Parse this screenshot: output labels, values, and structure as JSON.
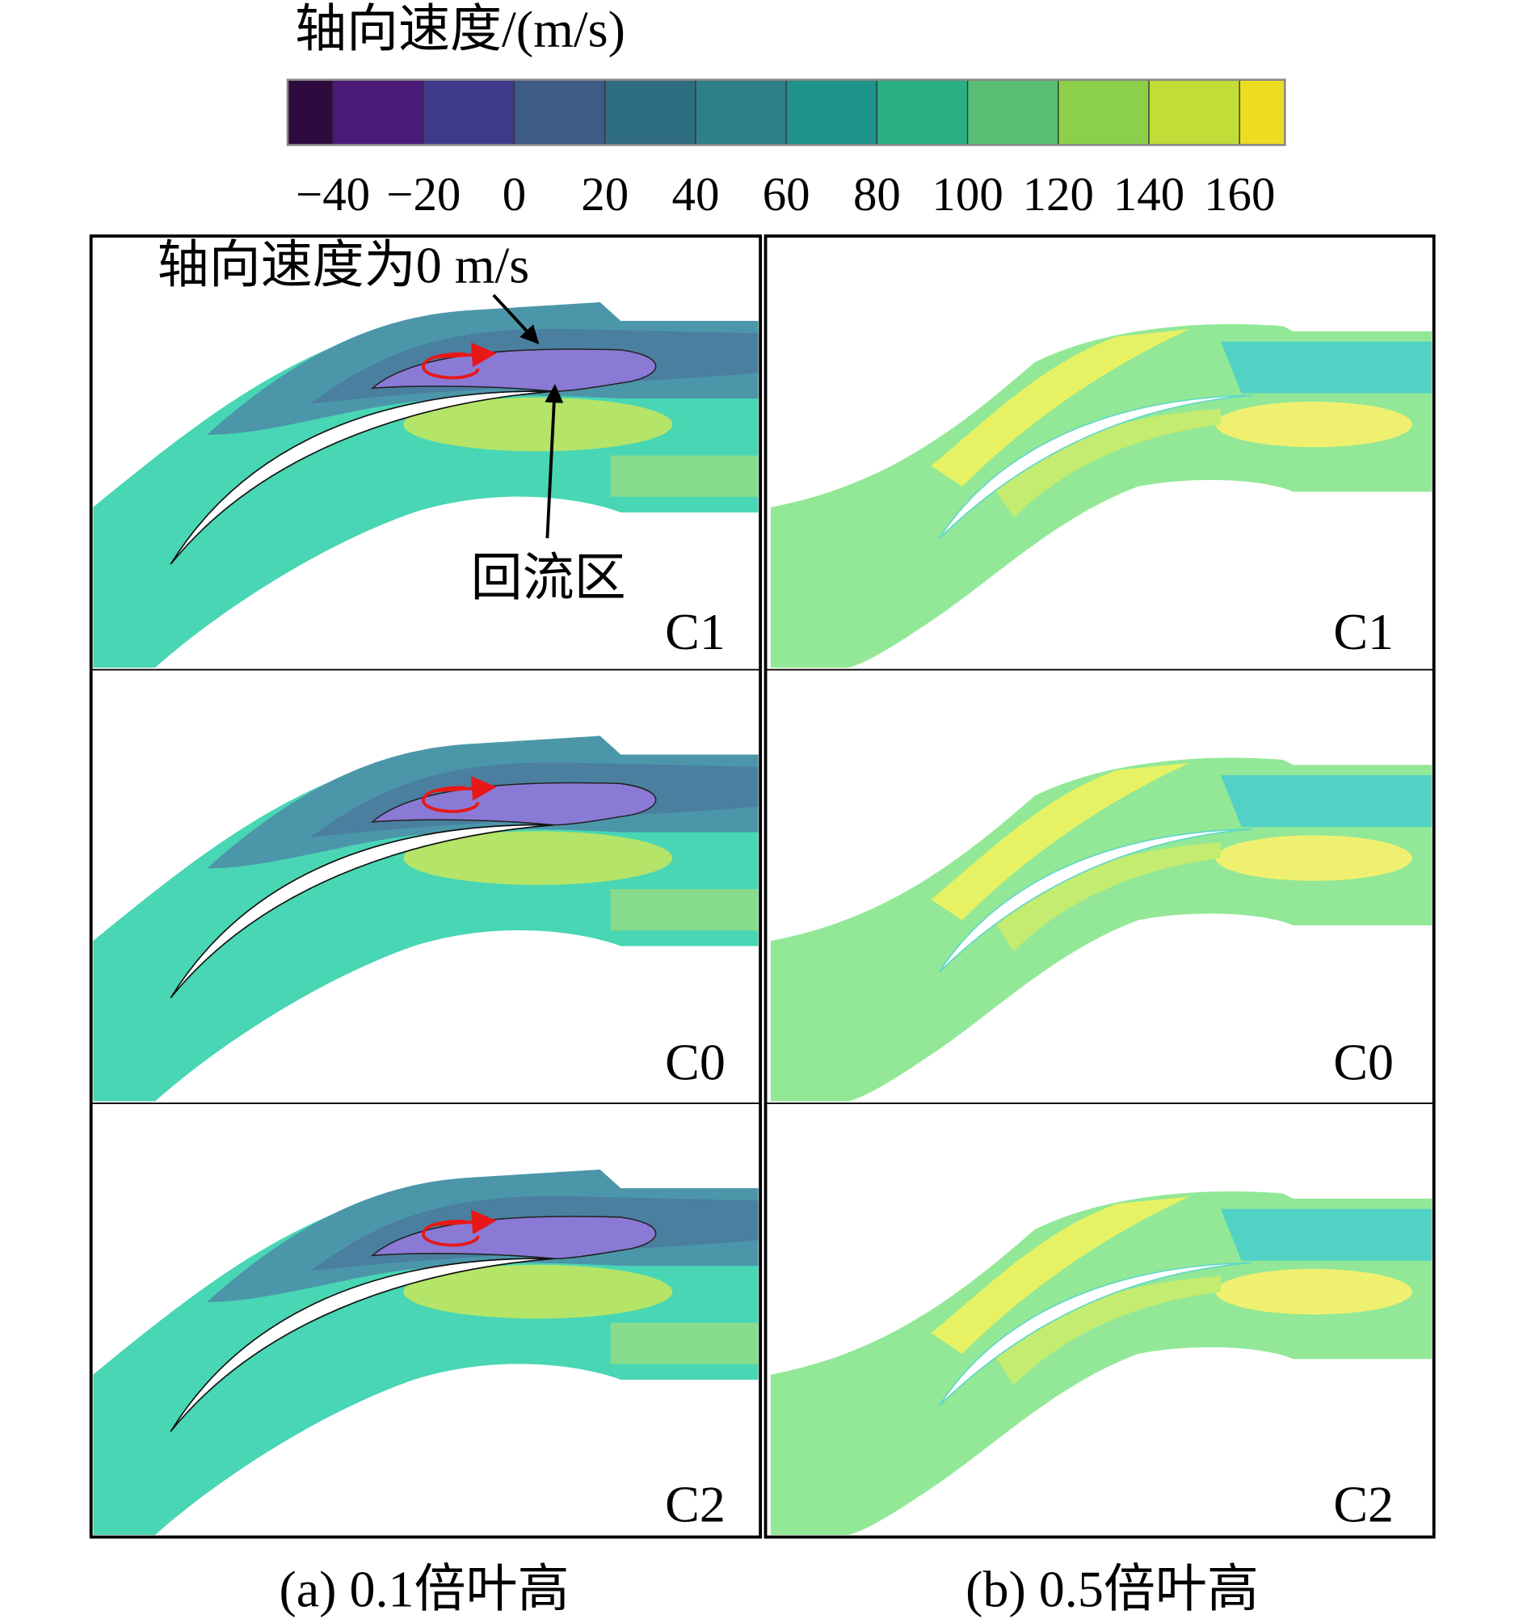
{
  "colorbar": {
    "title": "轴向速度/(m/s)",
    "ticks": [
      "−40",
      "−20",
      "0",
      "20",
      "40",
      "60",
      "80",
      "100",
      "120",
      "140",
      "160"
    ],
    "colors": [
      "#2e0a3e",
      "#4a1a78",
      "#3f3a8c",
      "#3e5a86",
      "#2e6d80",
      "#2e8088",
      "#1e948c",
      "#2aae84",
      "#58be74",
      "#8cd04a",
      "#c2dc38",
      "#ecdc22"
    ]
  },
  "annotations": {
    "zero_line": "轴向速度为0 m/s",
    "recirculation": "回流区"
  },
  "panels": [
    {
      "caption": "(a) 0.1倍叶高",
      "cases": [
        "C1",
        "C0",
        "C2"
      ]
    },
    {
      "caption": "(b) 0.5倍叶高",
      "cases": [
        "C1",
        "C0",
        "C2"
      ]
    }
  ]
}
